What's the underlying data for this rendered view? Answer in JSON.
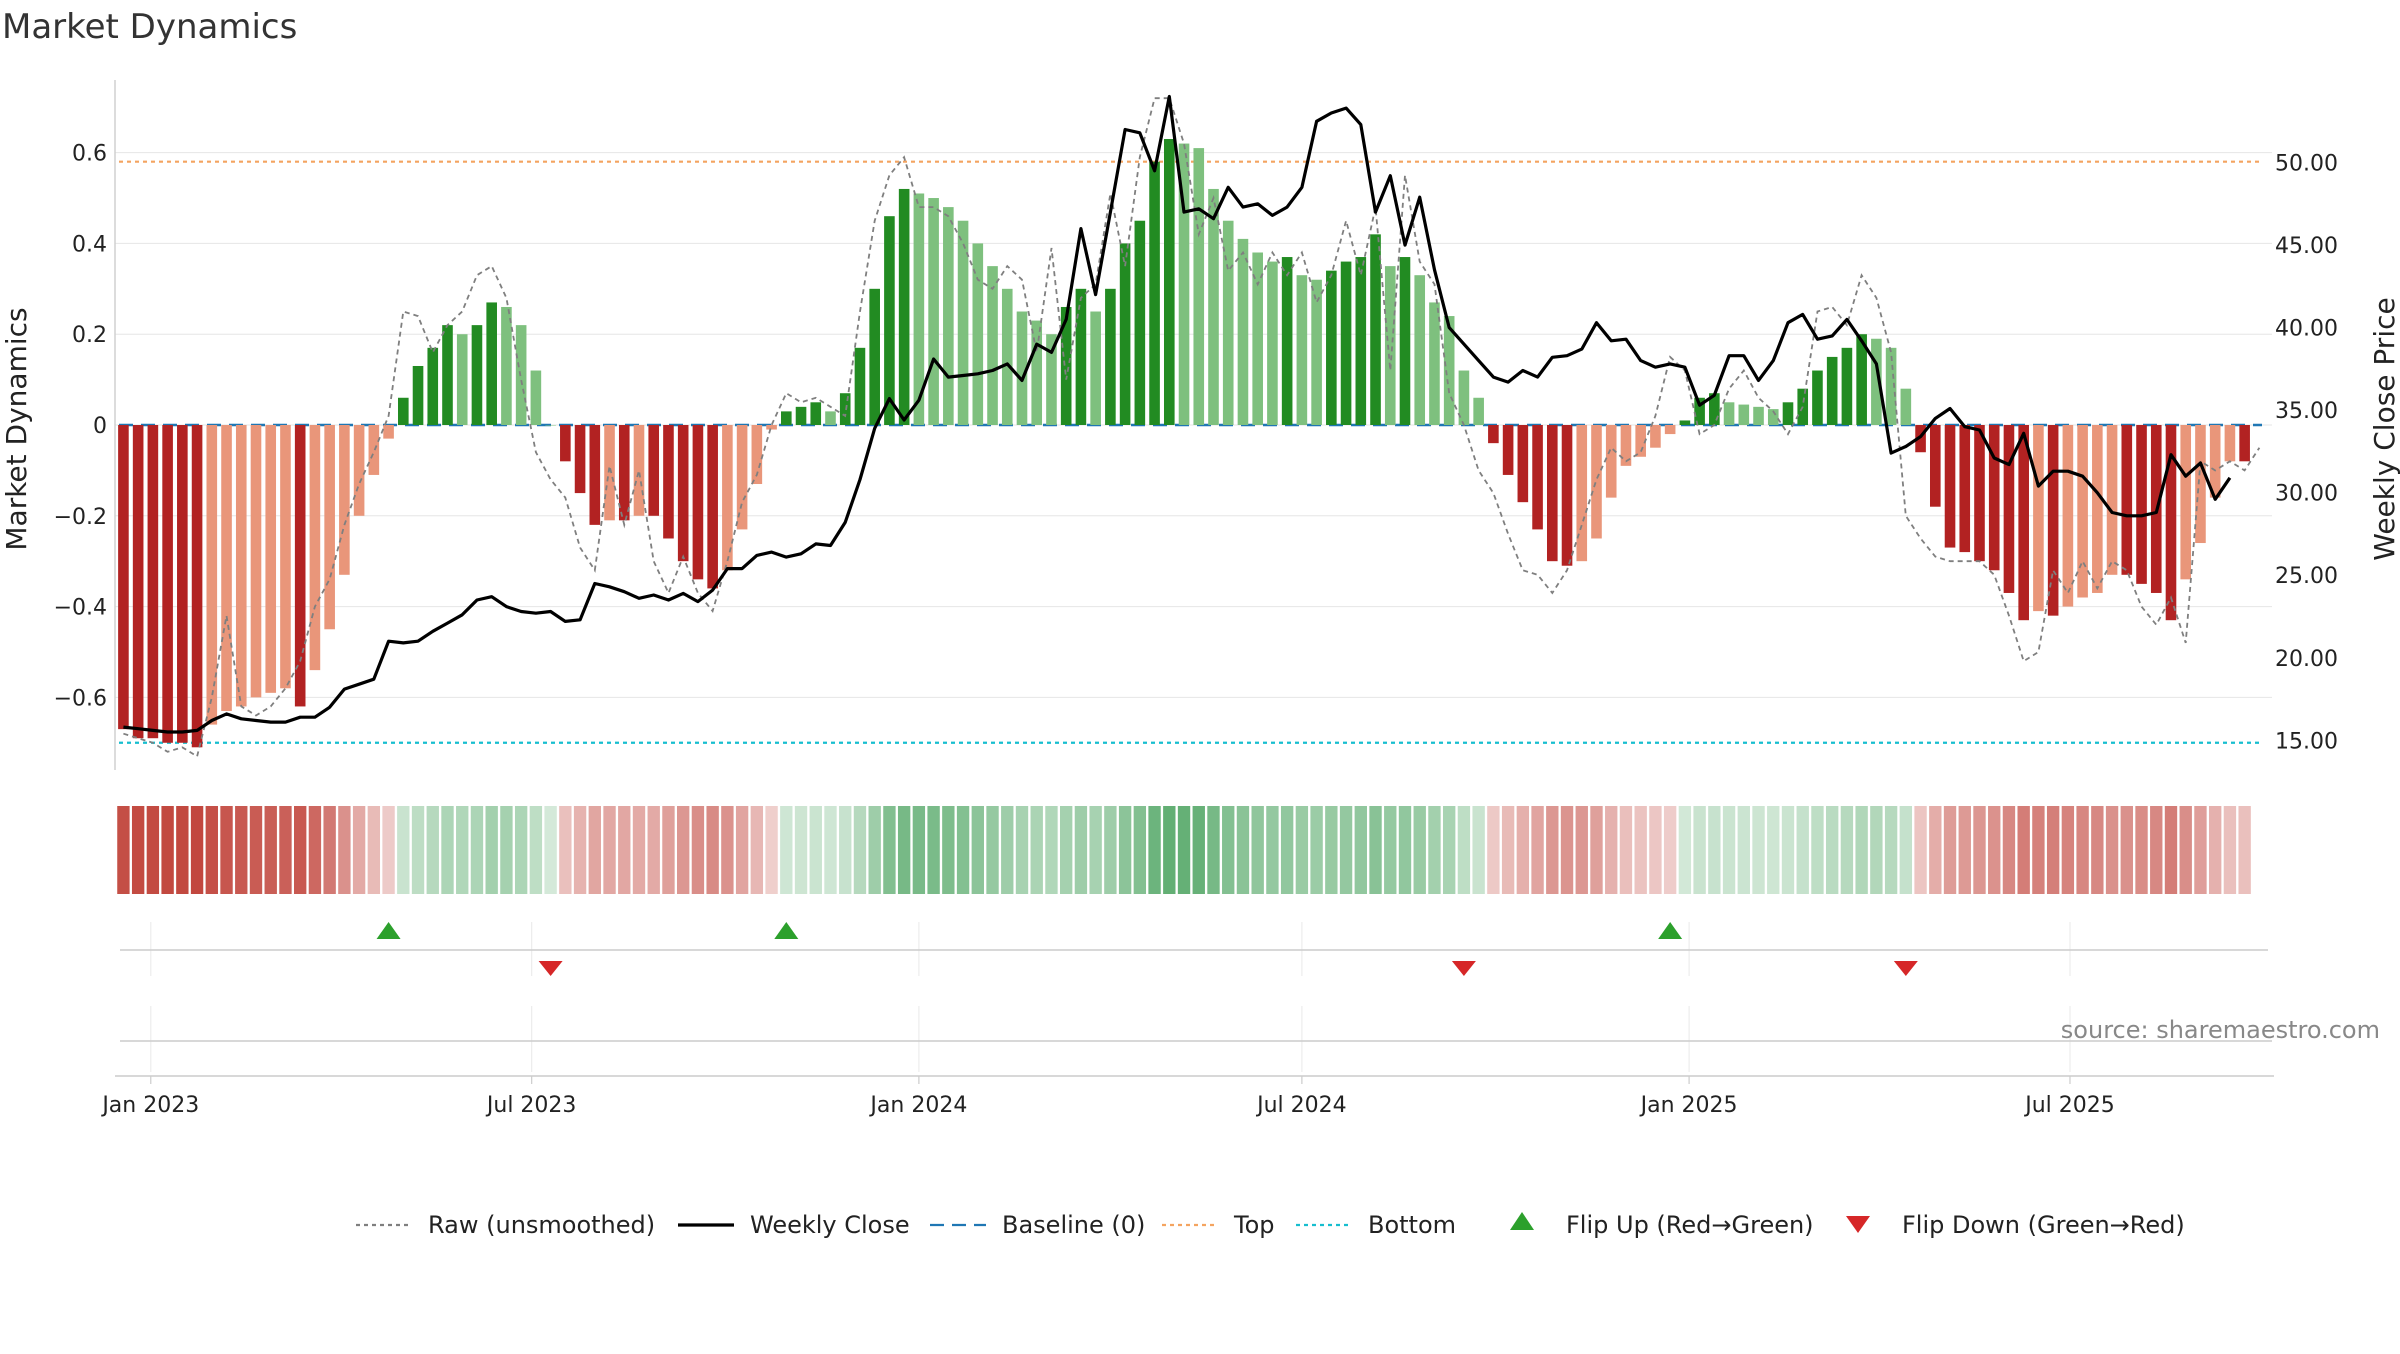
{
  "chart_data": [
    {
      "type": "bar+line",
      "title": "Market Dynamics",
      "ylabel": "Market Dynamics",
      "y2label": "Weekly Close Price",
      "ylim": [
        -0.76,
        0.76
      ],
      "y2lim": [
        13.2,
        55.0
      ],
      "y_ticks": [
        -0.6,
        -0.4,
        -0.2,
        0,
        0.2,
        0.4,
        0.6
      ],
      "y_tick_labels": [
        "−0.6",
        "−0.4",
        "−0.2",
        "0",
        "0.2",
        "0.4",
        "0.6"
      ],
      "y2_ticks": [
        15,
        20,
        25,
        30,
        35,
        40,
        45,
        50
      ],
      "y2_tick_labels": [
        "15.00",
        "20.00",
        "25.00",
        "30.00",
        "35.00",
        "40.00",
        "45.00",
        "50.00"
      ],
      "x_ticks": [
        {
          "date": "2023-01-01",
          "label": "Jan 2023"
        },
        {
          "date": "2023-07-01",
          "label": "Jul 2023"
        },
        {
          "date": "2024-01-01",
          "label": "Jan 2024"
        },
        {
          "date": "2024-07-01",
          "label": "Jul 2024"
        },
        {
          "date": "2025-01-01",
          "label": "Jan 2025"
        },
        {
          "date": "2025-07-01",
          "label": "Jul 2025"
        }
      ],
      "x_range": [
        "2022-12-15",
        "2025-10-05"
      ],
      "first_week": "2022-12-19",
      "top_level": 0.58,
      "bottom_level": -0.7,
      "baseline": 0,
      "grid": true,
      "legend_position": "bottom",
      "series": [
        {
          "name": "Market Dynamics",
          "kind": "bar",
          "values": [
            -0.67,
            -0.69,
            -0.69,
            -0.7,
            -0.7,
            -0.71,
            -0.66,
            -0.63,
            -0.62,
            -0.6,
            -0.59,
            -0.58,
            -0.62,
            -0.54,
            -0.45,
            -0.33,
            -0.2,
            -0.11,
            -0.03,
            0.06,
            0.13,
            0.17,
            0.22,
            0.2,
            0.22,
            0.27,
            0.26,
            0.22,
            0.12,
            0,
            -0.08,
            -0.15,
            -0.22,
            -0.21,
            -0.21,
            -0.2,
            -0.2,
            -0.25,
            -0.3,
            -0.34,
            -0.36,
            -0.32,
            -0.23,
            -0.13,
            -0.01,
            0.03,
            0.04,
            0.05,
            0.03,
            0.07,
            0.17,
            0.3,
            0.46,
            0.52,
            0.51,
            0.5,
            0.48,
            0.45,
            0.4,
            0.35,
            0.3,
            0.25,
            0.23,
            0.2,
            0.26,
            0.3,
            0.25,
            0.3,
            0.4,
            0.45,
            0.58,
            0.63,
            0.62,
            0.61,
            0.52,
            0.45,
            0.41,
            0.38,
            0.36,
            0.37,
            0.33,
            0.32,
            0.34,
            0.36,
            0.37,
            0.42,
            0.35,
            0.37,
            0.33,
            0.27,
            0.24,
            0.12,
            0.06,
            -0.04,
            -0.11,
            -0.17,
            -0.23,
            -0.3,
            -0.31,
            -0.3,
            -0.25,
            -0.16,
            -0.09,
            -0.07,
            -0.05,
            -0.02,
            0.01,
            0.06,
            0.07,
            0.05,
            0.045,
            0.04,
            0.035,
            0.05,
            0.08,
            0.12,
            0.15,
            0.17,
            0.2,
            0.19,
            0.17,
            0.08,
            -0.06,
            -0.18,
            -0.27,
            -0.28,
            -0.3,
            -0.32,
            -0.37,
            -0.43,
            -0.41,
            -0.42,
            -0.4,
            -0.38,
            -0.37,
            -0.33,
            -0.33,
            -0.35,
            -0.37,
            -0.43,
            -0.34,
            -0.26,
            -0.16,
            -0.08,
            -0.08
          ]
        },
        {
          "name": "Raw (unsmoothed)",
          "kind": "line",
          "values": [
            -0.68,
            -0.69,
            -0.7,
            -0.72,
            -0.71,
            -0.73,
            -0.6,
            -0.42,
            -0.62,
            -0.64,
            -0.62,
            -0.58,
            -0.52,
            -0.4,
            -0.34,
            -0.22,
            -0.13,
            -0.06,
            0.02,
            0.25,
            0.24,
            0.16,
            0.22,
            0.25,
            0.33,
            0.35,
            0.28,
            0.1,
            -0.06,
            -0.12,
            -0.16,
            -0.27,
            -0.32,
            -0.09,
            -0.22,
            -0.1,
            -0.3,
            -0.37,
            -0.29,
            -0.37,
            -0.41,
            -0.3,
            -0.17,
            -0.11,
            0,
            0.07,
            0.05,
            0.06,
            0.04,
            0.02,
            0.25,
            0.45,
            0.55,
            0.59,
            0.48,
            0.48,
            0.46,
            0.4,
            0.32,
            0.3,
            0.35,
            0.32,
            0.16,
            0.39,
            0.1,
            0.28,
            0.31,
            0.51,
            0.35,
            0.59,
            0.72,
            0.72,
            0.62,
            0.42,
            0.5,
            0.34,
            0.38,
            0.31,
            0.38,
            0.33,
            0.38,
            0.27,
            0.33,
            0.45,
            0.33,
            0.48,
            0.12,
            0.55,
            0.36,
            0.31,
            0.07,
            0,
            -0.1,
            -0.15,
            -0.24,
            -0.32,
            -0.33,
            -0.37,
            -0.32,
            -0.22,
            -0.12,
            -0.05,
            -0.08,
            -0.06,
            0.02,
            0.15,
            0.12,
            -0.02,
            0,
            0.08,
            0.12,
            0.06,
            0.03,
            -0.02,
            0.04,
            0.25,
            0.26,
            0.22,
            0.33,
            0.28,
            0.16,
            -0.2,
            -0.25,
            -0.29,
            -0.3,
            -0.3,
            -0.3,
            -0.33,
            -0.42,
            -0.52,
            -0.5,
            -0.32,
            -0.37,
            -0.3,
            -0.36,
            -0.3,
            -0.32,
            -0.4,
            -0.44,
            -0.38,
            -0.48,
            -0.08,
            -0.1,
            -0.08,
            -0.1,
            -0.05
          ]
        },
        {
          "name": "Weekly Close",
          "kind": "line",
          "axis": "y2",
          "values": [
            15.8,
            15.7,
            15.6,
            15.5,
            15.5,
            15.6,
            16.2,
            16.6,
            16.3,
            16.2,
            16.1,
            16.1,
            16.4,
            16.4,
            17.0,
            18.1,
            18.4,
            18.7,
            21.0,
            20.9,
            21.0,
            21.6,
            22.1,
            22.6,
            23.5,
            23.7,
            23.1,
            22.8,
            22.7,
            22.8,
            22.2,
            22.3,
            24.5,
            24.3,
            24.0,
            23.6,
            23.8,
            23.5,
            23.9,
            23.4,
            24.1,
            25.4,
            25.4,
            26.2,
            26.4,
            26.1,
            26.3,
            26.9,
            26.8,
            28.2,
            30.8,
            33.9,
            35.7,
            34.4,
            35.6,
            38.1,
            37.0,
            37.1,
            37.2,
            37.4,
            37.8,
            36.8,
            39.0,
            38.5,
            40.5,
            46.0,
            42.0,
            47.0,
            52.0,
            51.8,
            49.5,
            54.0,
            47.0,
            47.2,
            46.6,
            48.5,
            47.3,
            47.5,
            46.8,
            47.3,
            48.5,
            52.5,
            53.0,
            53.3,
            52.3,
            47.0,
            49.2,
            45.0,
            47.9,
            43.5,
            40.0,
            39.0,
            38.0,
            37.0,
            36.7,
            37.4,
            37.0,
            38.2,
            38.3,
            38.7,
            40.3,
            39.2,
            39.3,
            38.0,
            37.6,
            37.8,
            37.6,
            35.3,
            35.9,
            38.3,
            38.3,
            36.8,
            38.0,
            40.3,
            40.8,
            39.3,
            39.5,
            40.5,
            39.2,
            37.8,
            32.4,
            32.8,
            33.4,
            34.5,
            35.1,
            34.0,
            33.8,
            32.1,
            31.7,
            33.6,
            30.4,
            31.3,
            31.3,
            31.0,
            30.0,
            28.8,
            28.6,
            28.6,
            28.8,
            32.3,
            31.0,
            31.8,
            29.6,
            30.9
          ]
        },
        {
          "name": "Baseline (0)",
          "kind": "reference",
          "value": 0
        },
        {
          "name": "Top",
          "kind": "reference",
          "value": 0.58
        },
        {
          "name": "Bottom",
          "kind": "reference",
          "value": -0.7
        },
        {
          "name": "Flip Up (Red→Green)",
          "kind": "marker",
          "dates": [
            "2023-04-24",
            "2023-10-30",
            "2024-12-23"
          ]
        },
        {
          "name": "Flip Down (Green→Red)",
          "kind": "marker",
          "dates": [
            "2023-07-10",
            "2024-09-16",
            "2025-04-14"
          ]
        }
      ],
      "legend": [
        {
          "label": "Raw (unsmoothed)",
          "style": "dotted",
          "color": "#7f7f7f"
        },
        {
          "label": "Weekly Close",
          "style": "solid",
          "color": "#000000"
        },
        {
          "label": "Baseline (0)",
          "style": "dashed",
          "color": "#1f77b4"
        },
        {
          "label": "Top",
          "style": "dotted",
          "color": "#f4a460"
        },
        {
          "label": "Bottom",
          "style": "dotted",
          "color": "#17becf"
        },
        {
          "label": "Flip Up (Red→Green)",
          "style": "triangle-up",
          "color": "#2ca02c"
        },
        {
          "label": "Flip Down (Green→Red)",
          "style": "triangle-down",
          "color": "#d62728"
        }
      ]
    }
  ],
  "colors": {
    "strong_red": "#b22222",
    "light_red": "#e9967a",
    "strong_green": "#228b22",
    "light_green": "#7ec07e",
    "flip_up": "#2ca02c",
    "flip_down": "#d62728",
    "top_line": "#f4a460",
    "bottom_line": "#17becf",
    "baseline": "#1f77b4",
    "raw_line": "#7f7f7f",
    "close_line": "#000000"
  },
  "source": "source: sharemaestro.com"
}
